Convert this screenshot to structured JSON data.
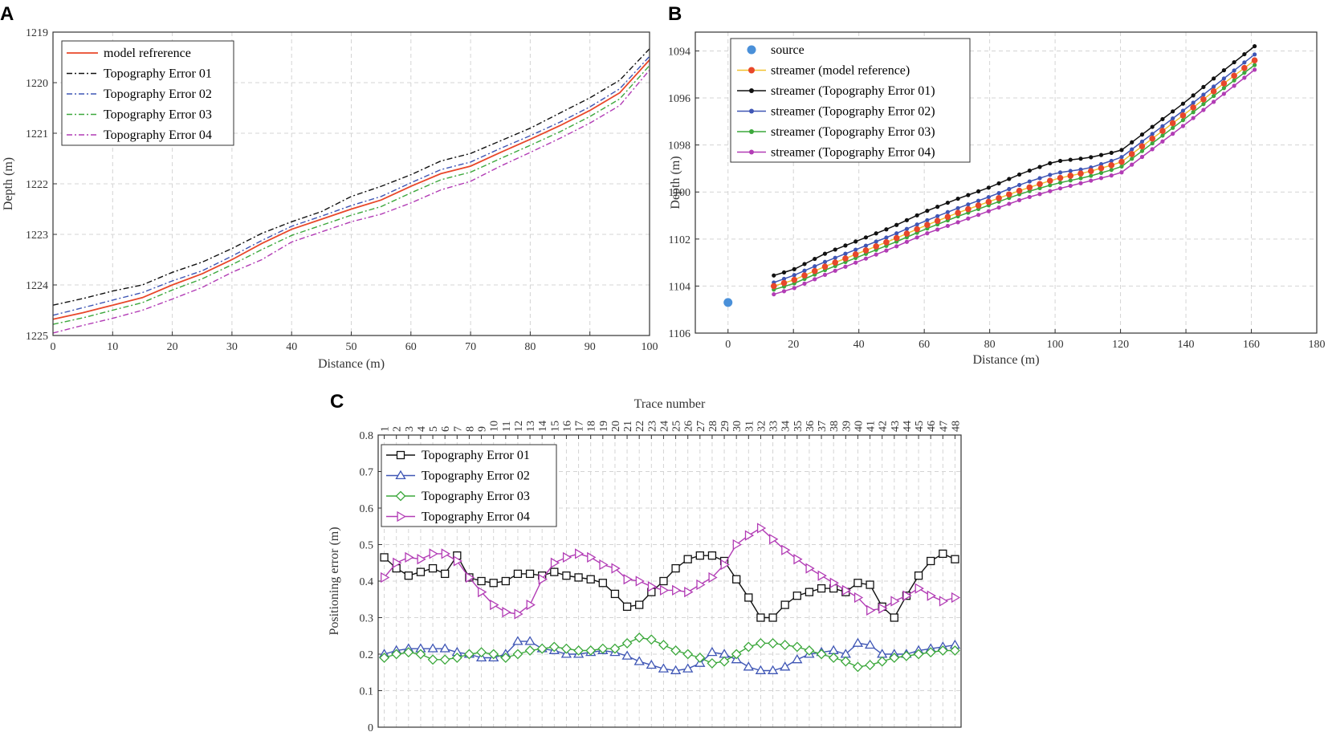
{
  "panel_labels": [
    "A",
    "B",
    "C"
  ],
  "chart_data": [
    {
      "panel": "A",
      "type": "line",
      "xlabel": "Distance (m)",
      "ylabel": "Depth (m)",
      "xlim": [
        0,
        100
      ],
      "ylim": [
        1219,
        1225
      ],
      "y_inverted": true,
      "xticks": [
        0,
        10,
        20,
        30,
        40,
        50,
        60,
        70,
        80,
        90,
        100
      ],
      "yticks": [
        1219,
        1220,
        1221,
        1222,
        1223,
        1224,
        1225
      ],
      "grid": true,
      "legend_position": "top-left",
      "series": [
        {
          "name": "model refrerence",
          "color": "#e8472a",
          "dash": "",
          "x": [
            0,
            5,
            10,
            15,
            20,
            25,
            30,
            35,
            40,
            45,
            50,
            55,
            60,
            65,
            70,
            75,
            80,
            85,
            90,
            95,
            100
          ],
          "y": [
            1224.68,
            1224.55,
            1224.4,
            1224.25,
            1224.0,
            1223.78,
            1223.5,
            1223.18,
            1222.9,
            1222.7,
            1222.5,
            1222.32,
            1222.05,
            1221.8,
            1221.65,
            1221.38,
            1221.12,
            1220.85,
            1220.55,
            1220.2,
            1219.55
          ]
        },
        {
          "name": "Topography Error 01",
          "color": "#111111",
          "dash": "7 3 2 3",
          "x": [
            0,
            5,
            10,
            15,
            20,
            25,
            30,
            35,
            40,
            45,
            50,
            55,
            60,
            65,
            70,
            75,
            80,
            85,
            90,
            95,
            100
          ],
          "y": [
            1224.4,
            1224.27,
            1224.12,
            1224.0,
            1223.75,
            1223.55,
            1223.28,
            1222.98,
            1222.75,
            1222.55,
            1222.25,
            1222.05,
            1221.82,
            1221.55,
            1221.4,
            1221.15,
            1220.9,
            1220.6,
            1220.3,
            1219.95,
            1219.33
          ]
        },
        {
          "name": "Topography Error 02",
          "color": "#3f56b5",
          "dash": "7 3 2 3",
          "x": [
            0,
            5,
            10,
            15,
            20,
            25,
            30,
            35,
            40,
            45,
            50,
            55,
            60,
            65,
            70,
            75,
            80,
            85,
            90,
            95,
            100
          ],
          "y": [
            1224.6,
            1224.45,
            1224.3,
            1224.15,
            1223.92,
            1223.72,
            1223.43,
            1223.12,
            1222.84,
            1222.64,
            1222.43,
            1222.25,
            1221.98,
            1221.72,
            1221.57,
            1221.3,
            1221.05,
            1220.78,
            1220.48,
            1220.12,
            1219.48
          ]
        },
        {
          "name": "Topography Error 03",
          "color": "#3ca83c",
          "dash": "7 3 2 3",
          "x": [
            0,
            5,
            10,
            15,
            20,
            25,
            30,
            35,
            40,
            45,
            50,
            55,
            60,
            65,
            70,
            75,
            80,
            85,
            90,
            95,
            100
          ],
          "y": [
            1224.78,
            1224.65,
            1224.5,
            1224.35,
            1224.1,
            1223.88,
            1223.6,
            1223.3,
            1223.02,
            1222.82,
            1222.62,
            1222.45,
            1222.18,
            1221.92,
            1221.77,
            1221.5,
            1221.24,
            1220.97,
            1220.67,
            1220.32,
            1219.66
          ]
        },
        {
          "name": "Topography Error 04",
          "color": "#b23cb5",
          "dash": "7 3 2 3",
          "x": [
            0,
            5,
            10,
            15,
            20,
            25,
            30,
            35,
            40,
            45,
            50,
            55,
            60,
            65,
            70,
            75,
            80,
            85,
            90,
            95,
            100
          ],
          "y": [
            1224.95,
            1224.8,
            1224.66,
            1224.5,
            1224.28,
            1224.05,
            1223.75,
            1223.5,
            1223.15,
            1222.95,
            1222.75,
            1222.6,
            1222.38,
            1222.12,
            1221.95,
            1221.65,
            1221.38,
            1221.1,
            1220.8,
            1220.45,
            1219.75
          ]
        }
      ]
    },
    {
      "panel": "B",
      "type": "line",
      "xlabel": "Distance (m)",
      "ylabel": "Depth (m)",
      "xlim": [
        -10,
        180
      ],
      "ylim": [
        1093.2,
        1106
      ],
      "y_inverted": true,
      "xticks": [
        0,
        20,
        40,
        60,
        80,
        100,
        120,
        140,
        160,
        180
      ],
      "yticks": [
        1094,
        1096,
        1098,
        1100,
        1102,
        1104,
        1106
      ],
      "grid": true,
      "legend_position": "top-left",
      "source": {
        "name": "source",
        "color": "#4a90d9",
        "x": 0,
        "y": 1104.7
      },
      "streamer_x_range": [
        14,
        161
      ],
      "streamer_points": 48,
      "series": [
        {
          "name": "streamer (model reference)",
          "line_color": "#f2c12e",
          "marker_color": "#e8472a",
          "x": [
            14,
            20,
            30,
            40,
            50,
            60,
            70,
            80,
            90,
            100,
            110,
            120,
            130,
            140,
            150,
            161
          ],
          "y": [
            1104.0,
            1103.75,
            1103.15,
            1102.6,
            1102.05,
            1101.45,
            1100.9,
            1100.4,
            1099.9,
            1099.45,
            1099.15,
            1098.75,
            1097.7,
            1096.65,
            1095.55,
            1094.4
          ]
        },
        {
          "name": "streamer (Topography Error 01)",
          "line_color": "#111111",
          "marker_color": "#111111",
          "x": [
            14,
            20,
            30,
            40,
            50,
            60,
            70,
            80,
            90,
            100,
            110,
            120,
            130,
            140,
            150,
            161
          ],
          "y": [
            1103.55,
            1103.3,
            1102.6,
            1102.05,
            1101.5,
            1100.85,
            1100.3,
            1099.8,
            1099.2,
            1098.7,
            1098.55,
            1098.25,
            1097.2,
            1096.15,
            1095.0,
            1093.8
          ]
        },
        {
          "name": "streamer (Topography Error 02)",
          "line_color": "#3f56b5",
          "marker_color": "#3f56b5",
          "x": [
            14,
            20,
            30,
            40,
            50,
            60,
            70,
            80,
            90,
            100,
            110,
            120,
            130,
            140,
            150,
            161
          ],
          "y": [
            1103.85,
            1103.55,
            1102.95,
            1102.4,
            1101.85,
            1101.25,
            1100.7,
            1100.2,
            1099.65,
            1099.2,
            1099.0,
            1098.55,
            1097.5,
            1096.45,
            1095.35,
            1094.15
          ]
        },
        {
          "name": "streamer (Topography Error 03)",
          "line_color": "#3ca83c",
          "marker_color": "#3ca83c",
          "x": [
            14,
            20,
            30,
            40,
            50,
            60,
            70,
            80,
            90,
            100,
            110,
            120,
            130,
            140,
            150,
            161
          ],
          "y": [
            1104.15,
            1103.9,
            1103.3,
            1102.75,
            1102.2,
            1101.6,
            1101.05,
            1100.55,
            1100.05,
            1099.65,
            1099.35,
            1098.95,
            1097.9,
            1096.85,
            1095.75,
            1094.6
          ]
        },
        {
          "name": "streamer (Topography Error 04)",
          "line_color": "#b23cb5",
          "marker_color": "#b23cb5",
          "x": [
            14,
            20,
            30,
            40,
            50,
            60,
            70,
            80,
            90,
            100,
            110,
            120,
            130,
            140,
            150,
            161
          ],
          "y": [
            1104.35,
            1104.1,
            1103.5,
            1102.95,
            1102.4,
            1101.8,
            1101.3,
            1100.8,
            1100.3,
            1099.9,
            1099.55,
            1099.2,
            1098.15,
            1097.1,
            1096.0,
            1094.8
          ]
        }
      ]
    },
    {
      "panel": "C",
      "type": "line",
      "xlabel": "Trace number",
      "ylabel": "Positioning error (m)",
      "xlim": [
        0.5,
        48.5
      ],
      "ylim": [
        0,
        0.8
      ],
      "xticks": [
        1,
        2,
        3,
        4,
        5,
        6,
        7,
        8,
        9,
        10,
        11,
        12,
        13,
        14,
        15,
        16,
        17,
        18,
        19,
        20,
        21,
        22,
        23,
        24,
        25,
        26,
        27,
        28,
        29,
        30,
        31,
        32,
        33,
        34,
        35,
        36,
        37,
        38,
        39,
        40,
        41,
        42,
        43,
        44,
        45,
        46,
        47,
        48
      ],
      "yticks": [
        0,
        0.1,
        0.2,
        0.3,
        0.4,
        0.5,
        0.6,
        0.7,
        0.8
      ],
      "ytick_labels": [
        "0",
        "0.1",
        "0.2",
        "0.3",
        "0.4",
        "0.5",
        "0.6",
        "0.7",
        "0.8"
      ],
      "grid": true,
      "legend_position": "top-left",
      "series": [
        {
          "name": "Topography Error 01",
          "color": "#111111",
          "marker": "square",
          "values": [
            0.465,
            0.435,
            0.415,
            0.425,
            0.435,
            0.42,
            0.47,
            0.41,
            0.4,
            0.395,
            0.4,
            0.42,
            0.42,
            0.415,
            0.425,
            0.415,
            0.41,
            0.405,
            0.395,
            0.365,
            0.33,
            0.335,
            0.37,
            0.4,
            0.435,
            0.46,
            0.47,
            0.47,
            0.455,
            0.405,
            0.355,
            0.3,
            0.3,
            0.335,
            0.36,
            0.37,
            0.38,
            0.38,
            0.37,
            0.395,
            0.39,
            0.33,
            0.3,
            0.36,
            0.415,
            0.455,
            0.475,
            0.46
          ]
        },
        {
          "name": "Topography Error 02",
          "color": "#3f56b5",
          "marker": "triangle",
          "values": [
            0.2,
            0.21,
            0.215,
            0.215,
            0.215,
            0.215,
            0.205,
            0.2,
            0.19,
            0.19,
            0.2,
            0.235,
            0.235,
            0.215,
            0.21,
            0.2,
            0.2,
            0.205,
            0.21,
            0.205,
            0.195,
            0.18,
            0.17,
            0.16,
            0.155,
            0.16,
            0.175,
            0.205,
            0.2,
            0.185,
            0.165,
            0.155,
            0.155,
            0.165,
            0.185,
            0.2,
            0.205,
            0.21,
            0.2,
            0.23,
            0.225,
            0.2,
            0.2,
            0.2,
            0.21,
            0.215,
            0.22,
            0.225
          ]
        },
        {
          "name": "Topography Error 03",
          "color": "#3ca83c",
          "marker": "diamond",
          "values": [
            0.19,
            0.2,
            0.205,
            0.2,
            0.185,
            0.185,
            0.19,
            0.2,
            0.205,
            0.2,
            0.19,
            0.2,
            0.21,
            0.215,
            0.22,
            0.215,
            0.21,
            0.21,
            0.215,
            0.215,
            0.23,
            0.245,
            0.24,
            0.225,
            0.21,
            0.2,
            0.19,
            0.175,
            0.18,
            0.2,
            0.22,
            0.23,
            0.23,
            0.225,
            0.22,
            0.21,
            0.2,
            0.19,
            0.18,
            0.165,
            0.17,
            0.18,
            0.19,
            0.195,
            0.2,
            0.205,
            0.21,
            0.21
          ]
        },
        {
          "name": "Topography Error 04",
          "color": "#b23cb5",
          "marker": "triangle-right",
          "values": [
            0.41,
            0.45,
            0.465,
            0.46,
            0.475,
            0.475,
            0.455,
            0.41,
            0.37,
            0.335,
            0.315,
            0.31,
            0.335,
            0.405,
            0.45,
            0.465,
            0.475,
            0.465,
            0.445,
            0.435,
            0.405,
            0.4,
            0.385,
            0.375,
            0.375,
            0.37,
            0.39,
            0.41,
            0.445,
            0.5,
            0.525,
            0.545,
            0.515,
            0.485,
            0.46,
            0.435,
            0.415,
            0.395,
            0.375,
            0.355,
            0.32,
            0.325,
            0.345,
            0.36,
            0.38,
            0.36,
            0.345,
            0.355
          ]
        }
      ]
    }
  ]
}
